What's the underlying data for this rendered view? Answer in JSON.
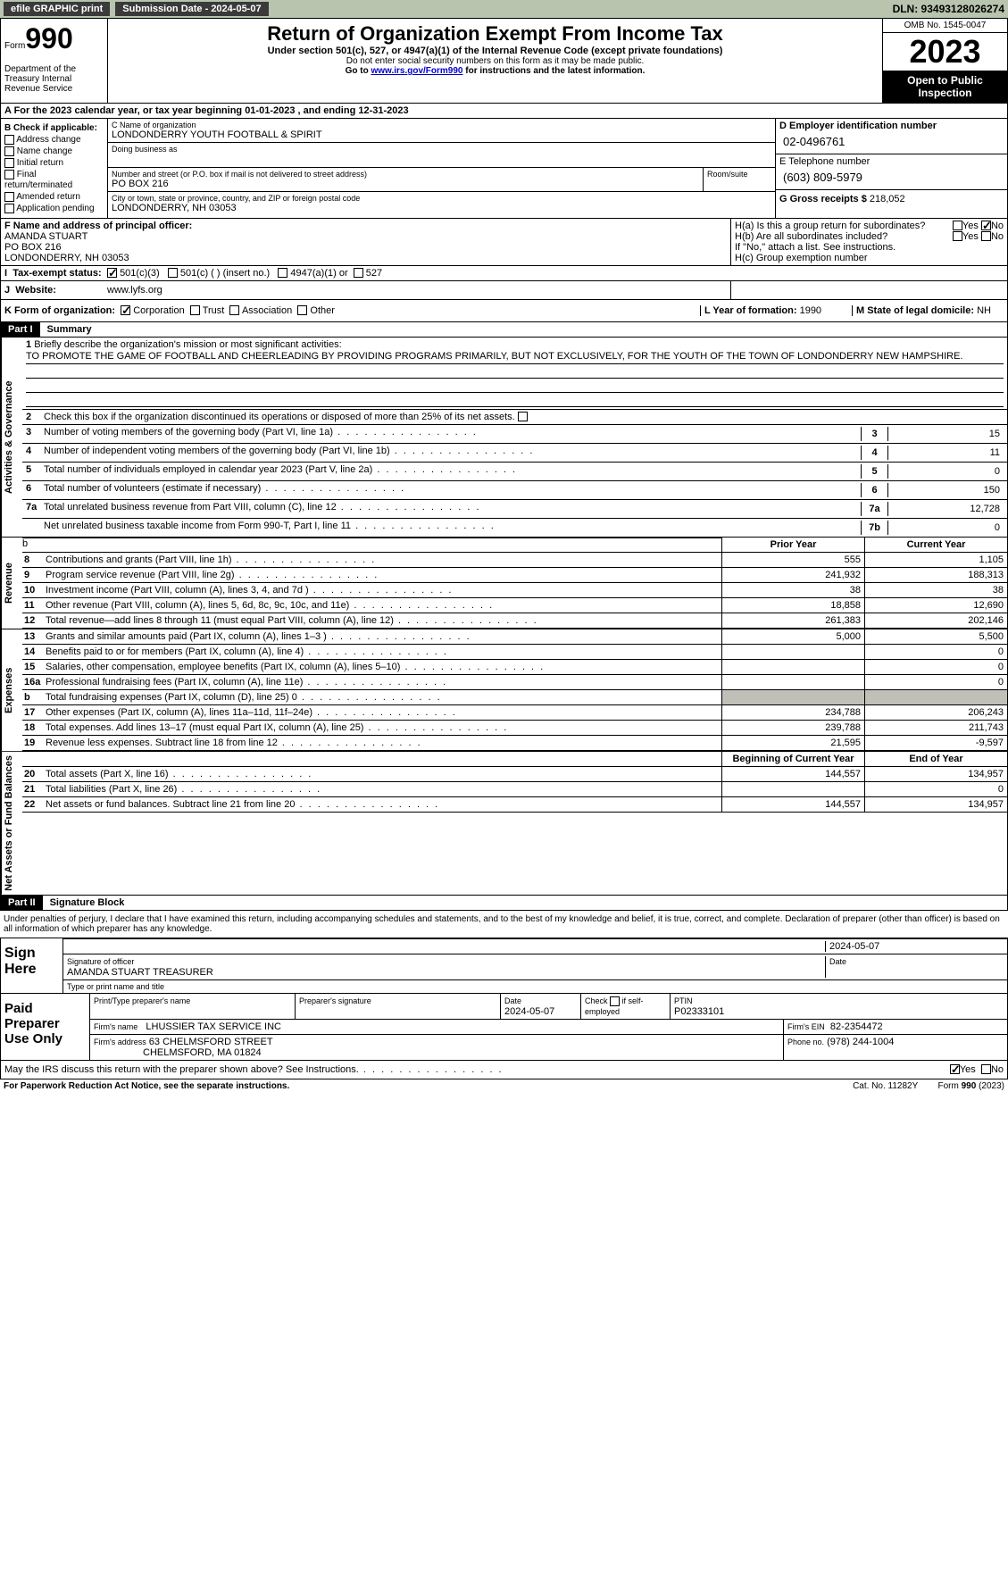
{
  "topbar": {
    "efile": "efile GRAPHIC print",
    "submission_label": "Submission Date - 2024-05-07",
    "dln": "DLN: 93493128026274"
  },
  "header": {
    "form_label": "Form",
    "form_num": "990",
    "dept": "Department of the Treasury Internal Revenue Service",
    "title": "Return of Organization Exempt From Income Tax",
    "subtitle": "Under section 501(c), 527, or 4947(a)(1) of the Internal Revenue Code (except private foundations)",
    "ssn_note": "Do not enter social security numbers on this form as it may be made public.",
    "goto": "Go to ",
    "goto_link": "www.irs.gov/Form990",
    "goto_tail": " for instructions and the latest information.",
    "omb": "OMB No. 1545-0047",
    "year": "2023",
    "inspect": "Open to Public Inspection"
  },
  "section_a": "A For the 2023 calendar year, or tax year beginning 01-01-2023   , and ending 12-31-2023",
  "box_b": {
    "label": "B Check if applicable:",
    "items": [
      "Address change",
      "Name change",
      "Initial return",
      "Final return/terminated",
      "Amended return",
      "Application pending"
    ]
  },
  "box_c": {
    "name_label": "C Name of organization",
    "name": "LONDONDERRY YOUTH FOOTBALL & SPIRIT",
    "dba_label": "Doing business as",
    "addr_label": "Number and street (or P.O. box if mail is not delivered to street address)",
    "addr": "PO BOX 216",
    "room_label": "Room/suite",
    "city_label": "City or town, state or province, country, and ZIP or foreign postal code",
    "city": "LONDONDERRY, NH  03053"
  },
  "box_d": {
    "label": "D Employer identification number",
    "value": "02-0496761"
  },
  "box_e": {
    "label": "E Telephone number",
    "value": "(603) 809-5979"
  },
  "box_g": {
    "label": "G Gross receipts $",
    "value": "218,052"
  },
  "box_f": {
    "label": "F  Name and address of principal officer:",
    "name": "AMANDA STUART",
    "addr1": "PO BOX 216",
    "addr2": "LONDONDERRY, NH  03053"
  },
  "box_h": {
    "ha": "H(a)  Is this a group return for subordinates?",
    "hb": "H(b)  Are all subordinates included?",
    "hb_note": "If \"No,\" attach a list. See instructions.",
    "hc": "H(c)  Group exemption number",
    "yes": "Yes",
    "no": "No"
  },
  "box_i": {
    "label": "Tax-exempt status:",
    "opt1": "501(c)(3)",
    "opt2": "501(c) (  ) (insert no.)",
    "opt3": "4947(a)(1) or",
    "opt4": "527"
  },
  "box_j": {
    "label": "Website:",
    "value": "www.lyfs.org"
  },
  "box_k": {
    "label": "K Form of organization:",
    "opts": [
      "Corporation",
      "Trust",
      "Association",
      "Other"
    ]
  },
  "box_l": {
    "label": "L Year of formation:",
    "value": "1990"
  },
  "box_m": {
    "label": "M State of legal domicile:",
    "value": "NH"
  },
  "parts": {
    "p1": "Part I",
    "p1_title": "Summary",
    "p2": "Part II",
    "p2_title": "Signature Block"
  },
  "vtabs": {
    "gov": "Activities & Governance",
    "rev": "Revenue",
    "exp": "Expenses",
    "net": "Net Assets or Fund Balances"
  },
  "summary": {
    "l1_label": "Briefly describe the organization's mission or most significant activities:",
    "l1_text": "TO PROMOTE THE GAME OF FOOTBALL AND CHEERLEADING BY PROVIDING PROGRAMS PRIMARILY, BUT NOT EXCLUSIVELY, FOR THE YOUTH OF THE TOWN OF LONDONDERRY NEW HAMPSHIRE.",
    "l2": "Check this box      if the organization discontinued its operations or disposed of more than 25% of its net assets.",
    "l3": "Number of voting members of the governing body (Part VI, line 1a)",
    "l4": "Number of independent voting members of the governing body (Part VI, line 1b)",
    "l5": "Total number of individuals employed in calendar year 2023 (Part V, line 2a)",
    "l6": "Total number of volunteers (estimate if necessary)",
    "l7a": "Total unrelated business revenue from Part VIII, column (C), line 12",
    "l7b": "Net unrelated business taxable income from Form 990-T, Part I, line 11",
    "v3": "15",
    "v4": "11",
    "v5": "0",
    "v6": "150",
    "v7a": "12,728",
    "v7b": "0",
    "prior": "Prior Year",
    "current": "Current Year",
    "boy": "Beginning of Current Year",
    "eoy": "End of Year"
  },
  "revenue": [
    {
      "n": "8",
      "t": "Contributions and grants (Part VIII, line 1h)",
      "p": "555",
      "c": "1,105"
    },
    {
      "n": "9",
      "t": "Program service revenue (Part VIII, line 2g)",
      "p": "241,932",
      "c": "188,313"
    },
    {
      "n": "10",
      "t": "Investment income (Part VIII, column (A), lines 3, 4, and 7d )",
      "p": "38",
      "c": "38"
    },
    {
      "n": "11",
      "t": "Other revenue (Part VIII, column (A), lines 5, 6d, 8c, 9c, 10c, and 11e)",
      "p": "18,858",
      "c": "12,690"
    },
    {
      "n": "12",
      "t": "Total revenue—add lines 8 through 11 (must equal Part VIII, column (A), line 12)",
      "p": "261,383",
      "c": "202,146"
    }
  ],
  "expenses": [
    {
      "n": "13",
      "t": "Grants and similar amounts paid (Part IX, column (A), lines 1–3 )",
      "p": "5,000",
      "c": "5,500"
    },
    {
      "n": "14",
      "t": "Benefits paid to or for members (Part IX, column (A), line 4)",
      "p": "",
      "c": "0"
    },
    {
      "n": "15",
      "t": "Salaries, other compensation, employee benefits (Part IX, column (A), lines 5–10)",
      "p": "",
      "c": "0"
    },
    {
      "n": "16a",
      "t": "Professional fundraising fees (Part IX, column (A), line 11e)",
      "p": "",
      "c": "0"
    },
    {
      "n": "b",
      "t": "Total fundraising expenses (Part IX, column (D), line 25) 0",
      "p": "shade",
      "c": "shade"
    },
    {
      "n": "17",
      "t": "Other expenses (Part IX, column (A), lines 11a–11d, 11f–24e)",
      "p": "234,788",
      "c": "206,243"
    },
    {
      "n": "18",
      "t": "Total expenses. Add lines 13–17 (must equal Part IX, column (A), line 25)",
      "p": "239,788",
      "c": "211,743"
    },
    {
      "n": "19",
      "t": "Revenue less expenses. Subtract line 18 from line 12",
      "p": "21,595",
      "c": "-9,597"
    }
  ],
  "netassets": [
    {
      "n": "20",
      "t": "Total assets (Part X, line 16)",
      "p": "144,557",
      "c": "134,957"
    },
    {
      "n": "21",
      "t": "Total liabilities (Part X, line 26)",
      "p": "",
      "c": "0"
    },
    {
      "n": "22",
      "t": "Net assets or fund balances. Subtract line 21 from line 20",
      "p": "144,557",
      "c": "134,957"
    }
  ],
  "sig": {
    "penalty": "Under penalties of perjury, I declare that I have examined this return, including accompanying schedules and statements, and to the best of my knowledge and belief, it is true, correct, and complete. Declaration of preparer (other than officer) is based on all information of which preparer has any knowledge.",
    "sign_here": "Sign Here",
    "sig_label": "Signature of officer",
    "date_label": "Date",
    "date": "2024-05-07",
    "name": "AMANDA STUART TREASURER",
    "type_label": "Type or print name and title"
  },
  "prep": {
    "label": "Paid Preparer Use Only",
    "h1": "Print/Type preparer's name",
    "h2": "Preparer's signature",
    "h3": "Date",
    "h4": "Check      if self-employed",
    "h5": "PTIN",
    "date": "2024-05-07",
    "ptin": "P02333101",
    "firm_label": "Firm's name",
    "firm": "LHUSSIER TAX SERVICE INC",
    "ein_label": "Firm's EIN",
    "ein": "82-2354472",
    "addr_label": "Firm's address",
    "addr": "63 CHELMSFORD STREET",
    "addr2": "CHELMSFORD, MA  01824",
    "phone_label": "Phone no.",
    "phone": "(978) 244-1004"
  },
  "footer": {
    "discuss": "May the IRS discuss this return with the preparer shown above? See Instructions.",
    "yes": "Yes",
    "no": "No",
    "paperwork": "For Paperwork Reduction Act Notice, see the separate instructions.",
    "cat": "Cat. No. 11282Y",
    "form": "Form 990 (2023)"
  }
}
